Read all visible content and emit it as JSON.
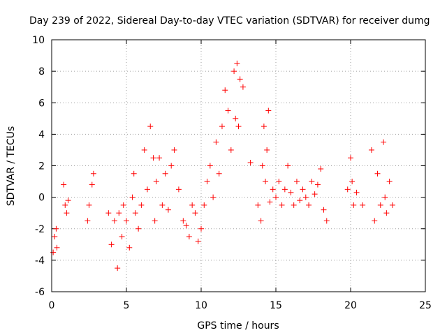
{
  "chart_data": {
    "type": "scatter",
    "title": "Day 239 of 2022, Sidereal Day-to-day VTEC variation (SDTVAR) for receiver dumg",
    "xlabel": "GPS time / hours",
    "ylabel": "SDTVAR / TECUs",
    "xlim": [
      0,
      25
    ],
    "ylim": [
      -6,
      10
    ],
    "xticks": [
      "0",
      "5",
      "10",
      "15",
      "20",
      "25"
    ],
    "yticks": [
      "-6",
      "-4",
      "-2",
      "0",
      "2",
      "4",
      "6",
      "8",
      "10"
    ],
    "grid": true,
    "marker": "+",
    "color": "#ff0000",
    "series": [
      {
        "name": "SDTVAR",
        "x": [
          0.1,
          0.2,
          0.3,
          0.35,
          0.8,
          0.9,
          1.0,
          1.1,
          2.4,
          2.5,
          2.7,
          2.8,
          3.8,
          4.0,
          4.2,
          4.4,
          4.5,
          4.7,
          4.8,
          5.0,
          5.2,
          5.4,
          5.5,
          5.6,
          5.8,
          6.0,
          6.2,
          6.4,
          6.6,
          6.8,
          6.9,
          7.0,
          7.2,
          7.4,
          7.6,
          7.8,
          8.0,
          8.2,
          8.5,
          8.8,
          9.0,
          9.2,
          9.4,
          9.6,
          9.8,
          10.0,
          10.2,
          10.4,
          10.6,
          10.8,
          11.0,
          11.2,
          11.4,
          11.6,
          11.8,
          12.0,
          12.2,
          12.3,
          12.4,
          12.5,
          12.6,
          12.8,
          13.3,
          13.8,
          14.0,
          14.1,
          14.2,
          14.3,
          14.4,
          14.5,
          14.6,
          14.8,
          15.0,
          15.2,
          15.4,
          15.6,
          15.8,
          16.0,
          16.2,
          16.4,
          16.6,
          16.8,
          17.0,
          17.2,
          17.4,
          17.6,
          17.8,
          18.0,
          18.2,
          18.4,
          19.8,
          20.0,
          20.1,
          20.2,
          20.4,
          20.8,
          21.4,
          21.6,
          21.8,
          22.0,
          22.2,
          22.3,
          22.4,
          22.6,
          22.8
        ],
        "y": [
          -3.5,
          -2.5,
          -2.0,
          -3.2,
          0.8,
          -0.5,
          -1.0,
          -0.2,
          -1.5,
          -0.5,
          0.8,
          1.5,
          -1.0,
          -3.0,
          -1.5,
          -4.5,
          -1.0,
          -2.5,
          -0.5,
          -1.5,
          -3.2,
          0.0,
          1.5,
          -1.0,
          -2.0,
          -0.5,
          3.0,
          0.5,
          4.5,
          2.5,
          -1.5,
          1.0,
          2.5,
          -0.5,
          1.5,
          -0.8,
          2.0,
          3.0,
          0.5,
          -1.5,
          -1.8,
          -2.5,
          -0.5,
          -1.0,
          -2.8,
          -2.0,
          -0.5,
          1.0,
          2.0,
          0.0,
          3.5,
          1.5,
          4.5,
          6.8,
          5.5,
          3.0,
          8.0,
          5.0,
          8.5,
          4.5,
          7.5,
          7.0,
          2.2,
          -0.5,
          -1.5,
          2.0,
          4.5,
          1.0,
          3.0,
          5.5,
          -0.3,
          0.5,
          0.0,
          1.0,
          -0.5,
          0.5,
          2.0,
          0.3,
          -0.5,
          1.0,
          -0.2,
          0.5,
          0.0,
          -0.5,
          1.0,
          0.2,
          0.8,
          1.8,
          -0.8,
          -1.5,
          0.5,
          2.5,
          1.0,
          -0.5,
          0.3,
          -0.5,
          3.0,
          -1.5,
          1.5,
          -0.5,
          3.5,
          0.0,
          -1.0,
          1.0,
          -0.5
        ]
      }
    ]
  }
}
